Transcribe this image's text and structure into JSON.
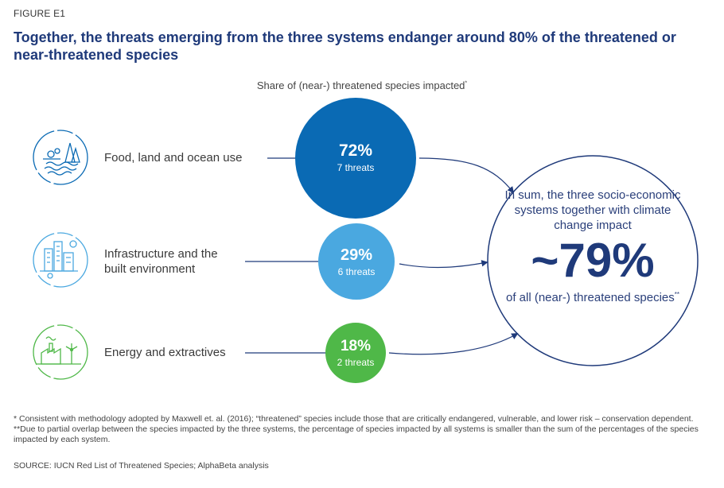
{
  "figure_label": "FIGURE E1",
  "title": "Together, the threats emerging from the three systems endanger around 80% of the threatened or near-threatened species",
  "chart_data": {
    "type": "bubble",
    "title": "Together, the threats emerging from the three systems endanger around 80% of the threatened or near-threatened species",
    "subtitle": "Share of (near-) threatened species impacted",
    "subtitle_mark": "*",
    "unit": "%",
    "categories": [
      "Food, land and ocean use",
      "Infrastructure and the built environment",
      "Energy and extractives"
    ],
    "values": [
      72,
      29,
      18
    ],
    "threats": [
      7,
      6,
      2
    ],
    "series": [
      {
        "name": "Food, land and ocean use",
        "pct_label": "72%",
        "threats_label": "7 threats",
        "value": 72,
        "threats": 7,
        "color": "#0a6ab4",
        "icon": "food-land-ocean-icon"
      },
      {
        "name": "Infrastructure and the built environment",
        "pct_label": "29%",
        "threats_label": "6 threats",
        "value": 29,
        "threats": 6,
        "color": "#4aa8e0",
        "icon": "city-buildings-icon"
      },
      {
        "name": "Energy and extractives",
        "pct_label": "18%",
        "threats_label": "2 threats",
        "value": 18,
        "threats": 2,
        "color": "#4fb848",
        "icon": "energy-factory-icon"
      }
    ],
    "summary": {
      "intro": "In sum, the three socio-economic systems together with climate change impact",
      "value": 79,
      "value_label": "~79%",
      "outro": "of all (near-) threatened species",
      "outro_mark": "**"
    }
  },
  "labels": {
    "row1": "Food, land and ocean use",
    "row2_line1": "Infrastructure and the",
    "row2_line2": "built environment",
    "row3": "Energy and extractives"
  },
  "footnote": "* Consistent with methodology adopted by Maxwell et. al. (2016); “threatened” species include those that are critically endangered, vulnerable, and lower risk – conservation dependent.  **Due to partial overlap between the species impacted by the three systems, the percentage of species impacted by all systems is smaller than the sum of the percentages of the species impacted by each system.",
  "source": "SOURCE: IUCN Red List of Threatened Species; AlphaBeta analysis",
  "colors": {
    "navy": "#1f3a7a",
    "food": "#0a6ab4",
    "infra": "#4aa8e0",
    "energy": "#4fb848"
  }
}
